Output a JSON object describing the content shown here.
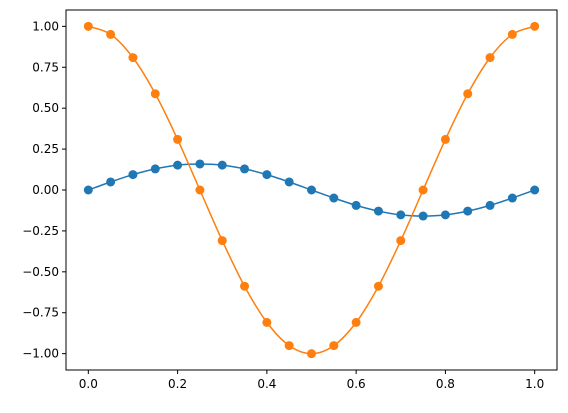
{
  "chart_data": {
    "type": "line",
    "xlim": [
      -0.05,
      1.05
    ],
    "ylim": [
      -1.1,
      1.1
    ],
    "x_ticks": [
      0.0,
      0.2,
      0.4,
      0.6,
      0.8,
      1.0
    ],
    "x_tick_labels": [
      "0.0",
      "0.2",
      "0.4",
      "0.6",
      "0.8",
      "1.0"
    ],
    "y_ticks": [
      1.0,
      0.75,
      0.5,
      0.25,
      0.0,
      -0.25,
      -0.5,
      -0.75,
      -1.0
    ],
    "y_tick_labels": [
      "1.00",
      "0.75",
      "0.50",
      "0.25",
      "0.00",
      "−0.25",
      "−0.50",
      "−0.75",
      "−1.00"
    ],
    "grid": false,
    "markers": "circle",
    "series": [
      {
        "color": "#1f77b4",
        "x": [
          0.0,
          0.05,
          0.1,
          0.15,
          0.2,
          0.25,
          0.3,
          0.35,
          0.4,
          0.45,
          0.5,
          0.55,
          0.6,
          0.65,
          0.7,
          0.75,
          0.8,
          0.85,
          0.9,
          0.95,
          1.0
        ],
        "values": [
          0.0,
          0.049,
          0.094,
          0.129,
          0.152,
          0.159,
          0.152,
          0.129,
          0.094,
          0.049,
          0.0,
          -0.049,
          -0.094,
          -0.129,
          -0.152,
          -0.159,
          -0.152,
          -0.129,
          -0.094,
          -0.049,
          0.0
        ]
      },
      {
        "color": "#ff7f0e",
        "x": [
          0.0,
          0.05,
          0.1,
          0.15,
          0.2,
          0.25,
          0.3,
          0.35,
          0.4,
          0.45,
          0.5,
          0.55,
          0.6,
          0.65,
          0.7,
          0.75,
          0.8,
          0.85,
          0.9,
          0.95,
          1.0
        ],
        "values": [
          1.0,
          0.951,
          0.809,
          0.588,
          0.309,
          0.0,
          -0.309,
          -0.588,
          -0.809,
          -0.951,
          -1.0,
          -0.951,
          -0.809,
          -0.588,
          -0.309,
          0.0,
          0.309,
          0.588,
          0.809,
          0.951,
          1.0
        ]
      }
    ]
  }
}
